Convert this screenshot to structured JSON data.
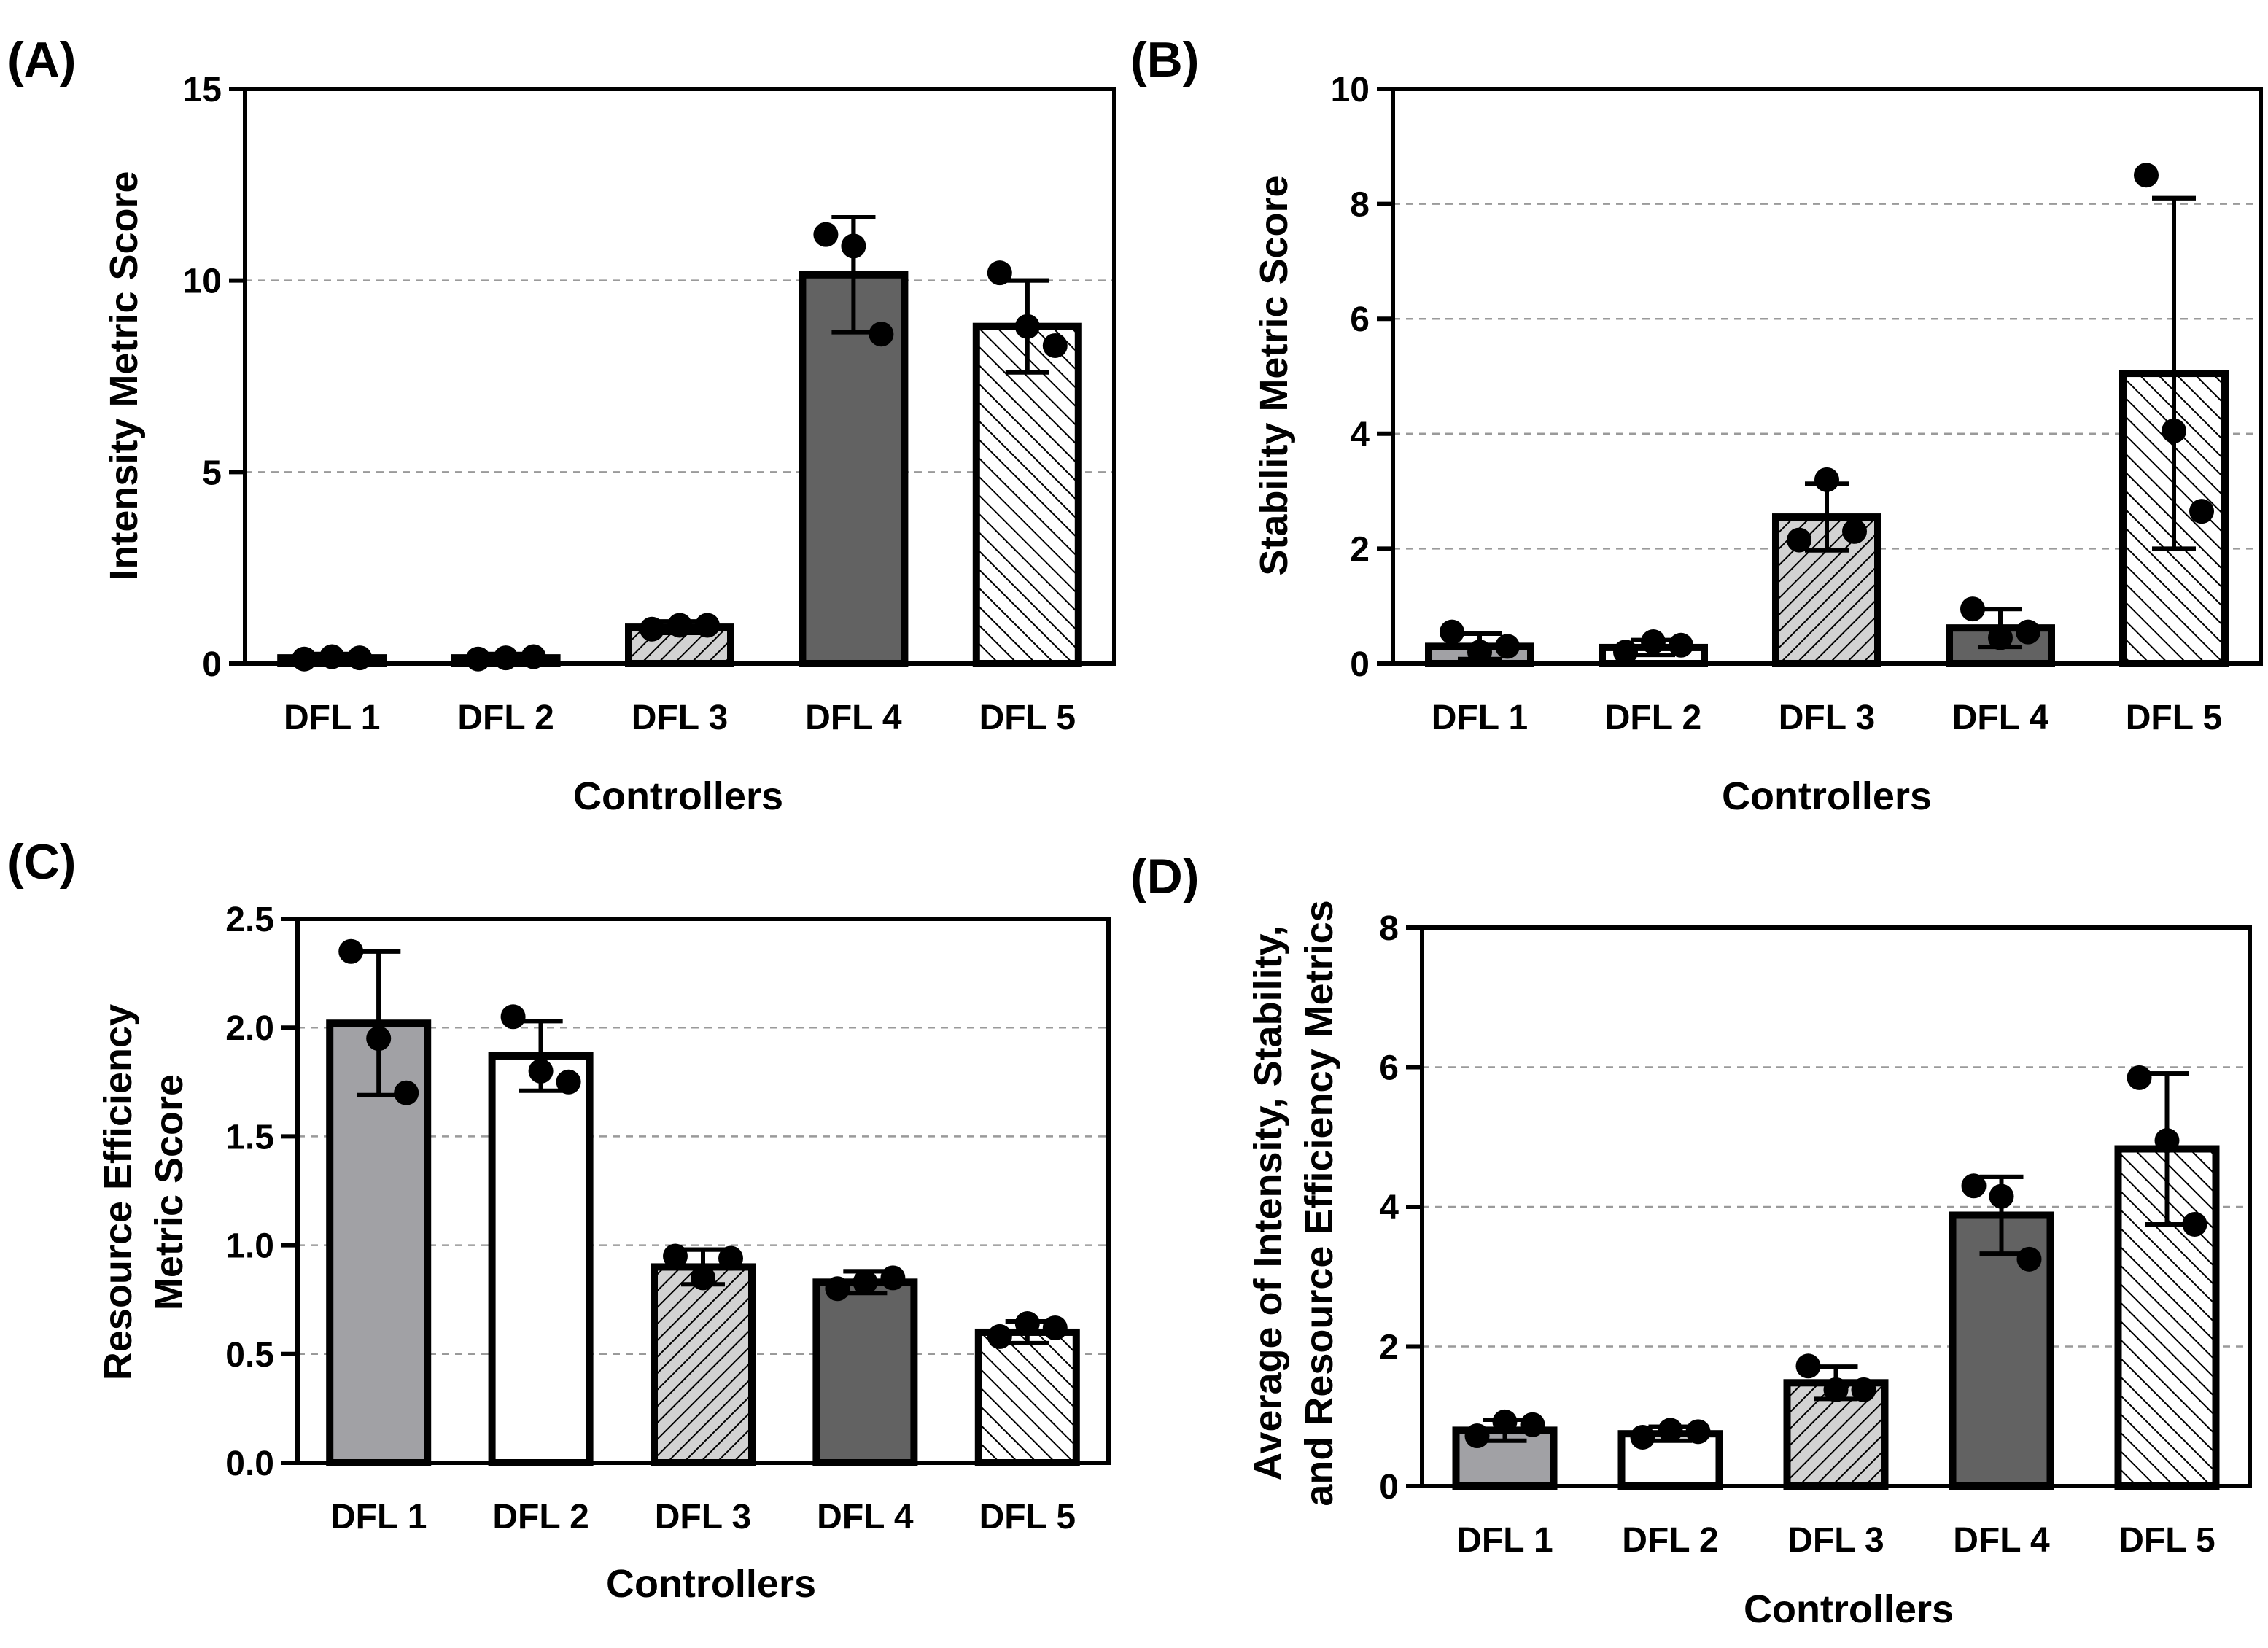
{
  "colors": {
    "dfl1": "#a1a1a5",
    "dfl2": "#ffffff",
    "dfl3": "#d2d2d2",
    "dfl4": "#626262",
    "dfl5": "#ffffff",
    "grid": "#9a9a9a"
  },
  "chart_data": [
    {
      "panel_label": "(A)",
      "type": "bar",
      "categories": [
        "DFL 1",
        "DFL 2",
        "DFL 3",
        "DFL 4",
        "DFL 5"
      ],
      "values": [
        0.15,
        0.15,
        0.95,
        10.15,
        8.8
      ],
      "errors": [
        0.1,
        0.1,
        0.15,
        1.5,
        1.2
      ],
      "points": [
        [
          0.12,
          0.18,
          0.15
        ],
        [
          0.12,
          0.15,
          0.18
        ],
        [
          0.9,
          1.0,
          1.0
        ],
        [
          11.2,
          10.9,
          8.6
        ],
        [
          10.2,
          8.8,
          8.3
        ]
      ],
      "fills": [
        "gray",
        "white",
        "hatch-dense",
        "dark",
        "hatch-sparse"
      ],
      "xlabel": "Controllers",
      "ylabel": [
        "Intensity Metric Score"
      ],
      "ylim": [
        0,
        15
      ],
      "yticks": [
        0,
        5,
        10,
        15
      ],
      "ytick_labels": [
        "0",
        "5",
        "10",
        "15"
      ],
      "grid": true
    },
    {
      "panel_label": "(B)",
      "type": "bar",
      "categories": [
        "DFL 1",
        "DFL 2",
        "DFL 3",
        "DFL 4",
        "DFL 5"
      ],
      "values": [
        0.3,
        0.28,
        2.55,
        0.62,
        5.05
      ],
      "errors": [
        0.22,
        0.13,
        0.58,
        0.33,
        3.05
      ],
      "points": [
        [
          0.55,
          0.2,
          0.3
        ],
        [
          0.2,
          0.38,
          0.32
        ],
        [
          2.15,
          3.2,
          2.3
        ],
        [
          0.95,
          0.45,
          0.55
        ],
        [
          8.5,
          4.05,
          2.65
        ]
      ],
      "fills": [
        "gray",
        "white",
        "hatch-dense",
        "dark",
        "hatch-sparse"
      ],
      "xlabel": "Controllers",
      "ylabel": [
        "Stability Metric Score"
      ],
      "ylim": [
        0,
        10
      ],
      "yticks": [
        0,
        2,
        4,
        6,
        8,
        10
      ],
      "ytick_labels": [
        "0",
        "2",
        "4",
        "6",
        "8",
        "10"
      ],
      "grid": true
    },
    {
      "panel_label": "(C)",
      "type": "bar",
      "categories": [
        "DFL 1",
        "DFL 2",
        "DFL 3",
        "DFL 4",
        "DFL 5"
      ],
      "values": [
        2.02,
        1.87,
        0.9,
        0.83,
        0.6
      ],
      "errors": [
        0.33,
        0.16,
        0.08,
        0.05,
        0.05
      ],
      "points": [
        [
          2.35,
          1.95,
          1.7
        ],
        [
          2.05,
          1.8,
          1.75
        ],
        [
          0.95,
          0.85,
          0.94
        ],
        [
          0.8,
          0.83,
          0.85
        ],
        [
          0.58,
          0.64,
          0.62
        ]
      ],
      "fills": [
        "gray",
        "white",
        "hatch-dense",
        "dark",
        "hatch-sparse"
      ],
      "xlabel": "Controllers",
      "ylabel": [
        "Resource Efficiency",
        "Metric Score"
      ],
      "ylim": [
        0,
        2.5
      ],
      "yticks": [
        0,
        0.5,
        1.0,
        1.5,
        2.0,
        2.5
      ],
      "ytick_labels": [
        "0.0",
        "0.5",
        "1.0",
        "1.5",
        "2.0",
        "2.5"
      ],
      "grid": true
    },
    {
      "panel_label": "(D)",
      "type": "bar",
      "categories": [
        "DFL 1",
        "DFL 2",
        "DFL 3",
        "DFL 4",
        "DFL 5"
      ],
      "values": [
        0.8,
        0.75,
        1.48,
        3.88,
        4.83
      ],
      "errors": [
        0.15,
        0.1,
        0.23,
        0.55,
        1.08
      ],
      "points": [
        [
          0.72,
          0.92,
          0.88
        ],
        [
          0.7,
          0.8,
          0.78
        ],
        [
          1.72,
          1.38,
          1.38
        ],
        [
          4.3,
          4.15,
          3.25
        ],
        [
          5.85,
          4.95,
          3.75
        ]
      ],
      "fills": [
        "gray",
        "white",
        "hatch-dense",
        "dark",
        "hatch-sparse"
      ],
      "xlabel": "Controllers",
      "ylabel": [
        "Average of Intensity, Stability,",
        "and Resource Efficiency Metrics"
      ],
      "ylim": [
        0,
        8
      ],
      "yticks": [
        0,
        2,
        4,
        6,
        8
      ],
      "ytick_labels": [
        "0",
        "2",
        "4",
        "6",
        "8"
      ],
      "grid": true
    }
  ]
}
